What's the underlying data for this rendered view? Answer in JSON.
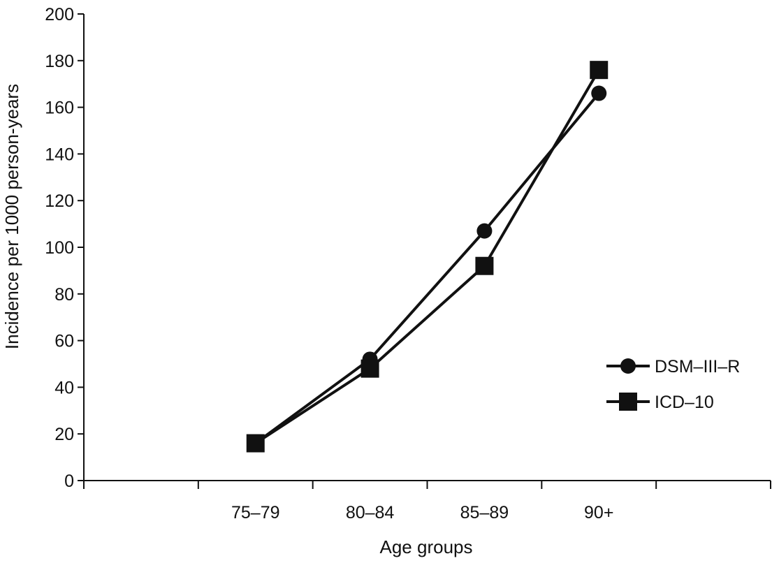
{
  "chart_data": {
    "type": "line",
    "title": "",
    "xlabel": "Age groups",
    "ylabel": "Incidence per 1000 person-years",
    "x_tick_slots": 6,
    "categories": [
      "75–79",
      "80–84",
      "85–89",
      "90+"
    ],
    "category_slots": [
      2,
      3,
      4,
      5
    ],
    "ylim": [
      0,
      200
    ],
    "yticks": [
      0,
      20,
      40,
      60,
      80,
      100,
      120,
      140,
      160,
      180,
      200
    ],
    "grid": false,
    "legend_position": "right",
    "series": [
      {
        "name": "DSM–III–R",
        "marker": "circle",
        "values": [
          16,
          52,
          107,
          166
        ]
      },
      {
        "name": "ICD–10",
        "marker": "square",
        "values": [
          16,
          48,
          92,
          176
        ]
      }
    ]
  },
  "colors": {
    "line": "#111111",
    "background": "#ffffff"
  }
}
